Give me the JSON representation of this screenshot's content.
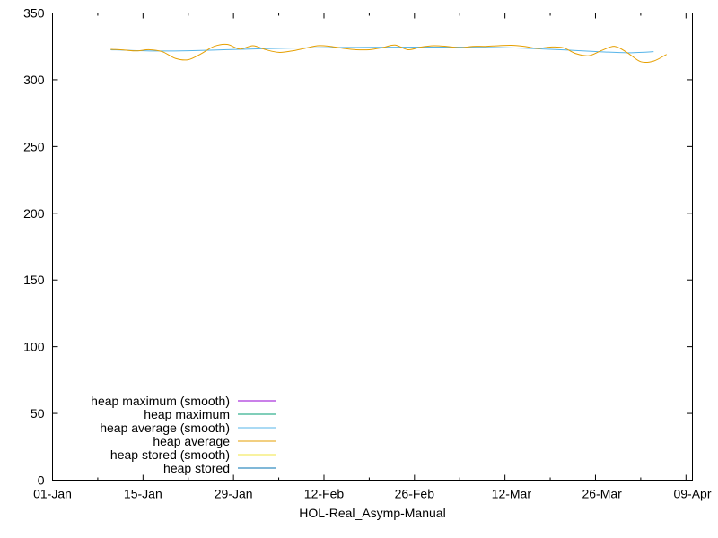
{
  "chart_data": {
    "type": "line",
    "xlabel": "HOL-Real_Asymp-Manual",
    "ylabel": "",
    "ylim": [
      0,
      350
    ],
    "yticks": [
      0,
      50,
      100,
      150,
      200,
      250,
      300,
      350
    ],
    "xlim": [
      "2024-01-01",
      "2024-04-09"
    ],
    "xticks": [
      {
        "date": "2024-01-01",
        "label": "01-Jan"
      },
      {
        "date": "2024-01-15",
        "label": "15-Jan"
      },
      {
        "date": "2024-01-29",
        "label": "29-Jan"
      },
      {
        "date": "2024-02-12",
        "label": "12-Feb"
      },
      {
        "date": "2024-02-26",
        "label": "26-Feb"
      },
      {
        "date": "2024-03-12",
        "label": "12-Mar"
      },
      {
        "date": "2024-03-26",
        "label": "26-Mar"
      },
      {
        "date": "2024-04-09",
        "label": "09-Apr"
      }
    ],
    "grid": false,
    "legend_position": "bottom-left",
    "legend": [
      {
        "name": "heap maximum (smooth)",
        "color": "#9400d3"
      },
      {
        "name": "heap maximum",
        "color": "#009e73"
      },
      {
        "name": "heap average (smooth)",
        "color": "#56b4e9"
      },
      {
        "name": "heap average",
        "color": "#e69f00"
      },
      {
        "name": "heap stored (smooth)",
        "color": "#f0e442"
      },
      {
        "name": "heap stored",
        "color": "#0072b2"
      }
    ],
    "series": [
      {
        "name": "heap average (smooth)",
        "color": "#56b4e9",
        "x": [
          "2024-01-10",
          "2024-01-14",
          "2024-01-18",
          "2024-01-22",
          "2024-01-26",
          "2024-01-30",
          "2024-02-03",
          "2024-02-07",
          "2024-02-11",
          "2024-02-15",
          "2024-02-19",
          "2024-02-23",
          "2024-02-27",
          "2024-03-02",
          "2024-03-06",
          "2024-03-10",
          "2024-03-14",
          "2024-03-18",
          "2024-03-22",
          "2024-03-26",
          "2024-03-30",
          "2024-04-03"
        ],
        "y": [
          322.5,
          321.8,
          321.5,
          321.7,
          322.2,
          322.8,
          323.3,
          323.7,
          324.0,
          324.2,
          324.3,
          324.4,
          324.5,
          324.5,
          324.4,
          324.1,
          323.6,
          322.8,
          321.9,
          320.9,
          320.2,
          321.0
        ]
      },
      {
        "name": "heap average",
        "color": "#e69f00",
        "x": [
          "2024-01-10",
          "2024-01-12",
          "2024-01-14",
          "2024-01-16",
          "2024-01-18",
          "2024-01-20",
          "2024-01-22",
          "2024-01-24",
          "2024-01-26",
          "2024-01-28",
          "2024-01-30",
          "2024-02-01",
          "2024-02-03",
          "2024-02-05",
          "2024-02-07",
          "2024-02-09",
          "2024-02-11",
          "2024-02-13",
          "2024-02-15",
          "2024-02-17",
          "2024-02-19",
          "2024-02-21",
          "2024-02-23",
          "2024-02-25",
          "2024-02-27",
          "2024-02-29",
          "2024-03-02",
          "2024-03-04",
          "2024-03-06",
          "2024-03-08",
          "2024-03-10",
          "2024-03-12",
          "2024-03-14",
          "2024-03-16",
          "2024-03-18",
          "2024-03-20",
          "2024-03-22",
          "2024-03-24",
          "2024-03-26",
          "2024-03-28",
          "2024-03-30",
          "2024-04-01",
          "2024-04-03",
          "2024-04-05"
        ],
        "y": [
          322.8,
          322.3,
          321.6,
          322.5,
          321.0,
          316.0,
          315.0,
          319.5,
          325.0,
          326.5,
          323.0,
          325.5,
          322.5,
          320.5,
          321.5,
          323.5,
          325.5,
          325.0,
          323.5,
          322.5,
          322.5,
          324.0,
          326.0,
          322.5,
          324.5,
          325.5,
          325.0,
          324.0,
          325.0,
          325.0,
          325.5,
          325.8,
          325.0,
          323.5,
          324.5,
          324.0,
          319.5,
          318.0,
          322.0,
          325.0,
          320.0,
          313.5,
          314.0,
          319.0
        ]
      }
    ]
  }
}
